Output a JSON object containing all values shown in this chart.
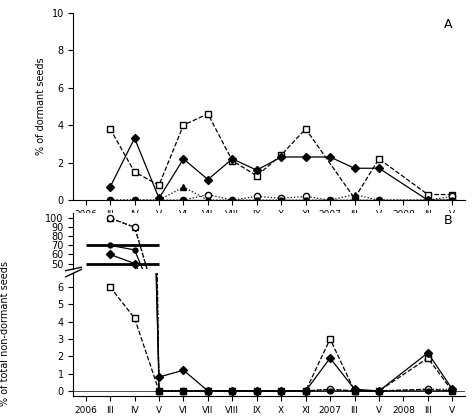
{
  "x_labels": [
    "2006",
    "III",
    "IV",
    "V",
    "VI",
    "VII",
    "VIII",
    "IX",
    "X",
    "XI",
    "2007",
    "III",
    "V",
    "2008",
    "III",
    "V"
  ],
  "x_positions": [
    0,
    1,
    2,
    3,
    4,
    5,
    6,
    7,
    8,
    9,
    10,
    11,
    12,
    13,
    14,
    15
  ],
  "A_square_open": {
    "x": [
      1,
      2,
      3,
      4,
      5,
      6,
      7,
      8,
      9,
      11,
      12,
      14,
      15
    ],
    "y": [
      3.8,
      1.5,
      0.8,
      4.0,
      4.6,
      2.1,
      1.3,
      2.4,
      3.8,
      0.1,
      2.2,
      0.3,
      0.3
    ]
  },
  "A_diamond_filled": {
    "x": [
      1,
      2,
      3,
      4,
      5,
      6,
      7,
      8,
      9,
      10,
      11,
      12,
      14,
      15
    ],
    "y": [
      0.7,
      3.3,
      0.1,
      2.2,
      1.1,
      2.2,
      1.6,
      2.3,
      2.3,
      2.3,
      1.7,
      1.7,
      0.0,
      0.0
    ]
  },
  "A_triangle_filled": {
    "x": [
      1,
      2,
      3,
      4,
      5,
      6,
      7,
      8,
      9,
      10,
      11,
      12,
      14,
      15
    ],
    "y": [
      0.0,
      0.0,
      0.0,
      0.7,
      0.0,
      0.0,
      0.0,
      0.0,
      0.0,
      0.0,
      0.3,
      0.0,
      0.0,
      0.0
    ]
  },
  "A_circle_open": {
    "x": [
      1,
      2,
      3,
      4,
      5,
      6,
      7,
      8,
      9,
      10,
      11,
      12,
      14,
      15
    ],
    "y": [
      0.0,
      0.0,
      0.0,
      0.0,
      0.3,
      0.0,
      0.2,
      0.1,
      0.2,
      0.0,
      0.0,
      0.0,
      0.0,
      0.2
    ]
  },
  "A_circle_filled": {
    "x": [
      1,
      2,
      3,
      4,
      5,
      6,
      7,
      8,
      9,
      10,
      11,
      12,
      14,
      15
    ],
    "y": [
      0.0,
      0.0,
      0.0,
      0.0,
      0.0,
      0.0,
      0.0,
      0.0,
      0.0,
      0.0,
      0.0,
      0.0,
      0.0,
      0.0
    ]
  },
  "B_square_open": {
    "x": [
      1,
      2,
      3,
      4,
      5,
      6,
      7,
      8,
      9,
      10,
      11,
      12,
      14,
      15
    ],
    "y": [
      6.0,
      4.2,
      0.0,
      0.0,
      0.0,
      0.0,
      0.0,
      0.0,
      0.0,
      3.0,
      0.0,
      0.0,
      1.9,
      0.0
    ]
  },
  "B_diamond_filled": {
    "x": [
      1,
      2,
      3,
      4,
      5,
      6,
      7,
      8,
      9,
      10,
      11,
      12,
      14,
      15
    ],
    "y": [
      60.0,
      50.0,
      0.8,
      1.2,
      0.0,
      0.0,
      0.0,
      0.0,
      0.0,
      1.9,
      0.1,
      0.0,
      2.2,
      0.1
    ]
  },
  "B_triangle_filled": {
    "x": [
      1,
      2,
      3,
      4,
      5,
      6,
      7,
      8,
      9,
      10,
      11,
      12,
      14,
      15
    ],
    "y": [
      100.0,
      90.0,
      0.0,
      0.0,
      0.0,
      0.0,
      0.0,
      0.0,
      0.0,
      0.1,
      0.0,
      0.0,
      0.1,
      0.1
    ]
  },
  "B_circle_open": {
    "x": [
      1,
      2,
      3,
      4,
      5,
      6,
      7,
      8,
      9,
      10,
      11,
      12,
      14,
      15
    ],
    "y": [
      100.0,
      90.0,
      0.0,
      0.0,
      0.0,
      0.0,
      0.0,
      0.0,
      0.0,
      0.1,
      0.0,
      0.0,
      0.1,
      0.0
    ]
  },
  "B_circle_filled": {
    "x": [
      1,
      2,
      3,
      4,
      5,
      6,
      7,
      8,
      9,
      10,
      11,
      12,
      14,
      15
    ],
    "y": [
      70.0,
      65.0,
      0.0,
      0.0,
      0.0,
      0.0,
      0.0,
      0.0,
      0.0,
      0.0,
      0.0,
      0.0,
      0.0,
      0.0
    ]
  },
  "B_hline_upper": 70.0,
  "B_hline_lower": 50.0,
  "panel_A_label": "A",
  "panel_B_label": "B",
  "ylabel_A": "% of dormant seeds",
  "ylabel_B": "% of total non-dormant seeds",
  "ylim_A": [
    0,
    10
  ],
  "yticks_A": [
    0,
    2,
    4,
    6,
    8,
    10
  ],
  "yticks_B_lower": [
    0,
    1,
    2,
    3,
    4,
    5,
    6
  ],
  "yticks_B_upper": [
    50,
    60,
    70,
    80,
    90,
    100
  ],
  "background_color": "#ffffff"
}
